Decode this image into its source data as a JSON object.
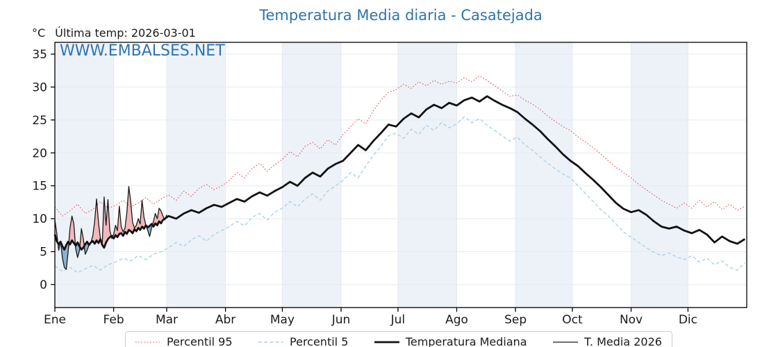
{
  "title": "Temperatura Media diaria - Casatejada",
  "header": {
    "unit": "°C",
    "last_temp": "Última temp: 2026-03-01"
  },
  "watermark": "WWW.EMBALSES.NET",
  "colors": {
    "title": "#2e74ad",
    "watermark": "#2f74b3",
    "band": "#edf2f8",
    "grid": "#e7eaef",
    "frame": "#000000",
    "p95": "#e25252",
    "p5": "#a9d2e8",
    "median": "#111111",
    "t2026": "#1a1a1a",
    "fill_above": "#f4b8ba",
    "fill_below": "#8cb2d0"
  },
  "chart_data": {
    "type": "line",
    "title": "Temperatura Media diaria - Casatejada",
    "xlabel": "",
    "ylabel": "°C",
    "ylim": [
      -3.5,
      36.8
    ],
    "yticks": [
      0,
      5,
      10,
      15,
      20,
      25,
      30,
      35
    ],
    "x_tick_labels": [
      "Ene",
      "Feb",
      "Mar",
      "Abr",
      "May",
      "Jun",
      "Jul",
      "Ago",
      "Sep",
      "Oct",
      "Nov",
      "Dic"
    ],
    "x_tick_days": [
      0,
      31,
      59,
      90,
      120,
      151,
      181,
      212,
      243,
      273,
      304,
      334
    ],
    "days_in_year": 365,
    "shaded_month_indices": [
      0,
      2,
      4,
      6,
      8,
      10
    ],
    "grid": true,
    "legend_position": "bottom",
    "series": [
      {
        "name": "Percentil 95",
        "key": "percentil-95",
        "style": "dotted",
        "x0": 0,
        "dx": 4,
        "values": [
          11.8,
          10.4,
          11.2,
          12.2,
          10.8,
          11.4,
          12.6,
          11.6,
          12.0,
          12.8,
          11.8,
          12.4,
          13.2,
          12.2,
          13.0,
          13.6,
          12.8,
          14.2,
          13.4,
          14.6,
          15.2,
          14.4,
          15.0,
          15.8,
          17.0,
          16.2,
          17.6,
          18.4,
          17.2,
          18.2,
          19.0,
          20.2,
          19.4,
          21.0,
          21.6,
          20.6,
          22.0,
          21.2,
          22.8,
          24.0,
          25.2,
          24.4,
          26.4,
          28.0,
          29.2,
          29.6,
          30.4,
          29.8,
          30.8,
          30.2,
          31.0,
          30.4,
          30.9,
          30.6,
          31.4,
          30.8,
          31.7,
          31.0,
          30.2,
          29.4,
          28.6,
          28.8,
          28.0,
          27.4,
          26.6,
          25.6,
          24.8,
          24.0,
          23.4,
          22.4,
          21.6,
          20.8,
          19.8,
          18.8,
          17.8,
          17.0,
          16.2,
          15.2,
          14.4,
          13.6,
          12.8,
          12.2,
          11.6,
          12.4,
          11.6,
          12.8,
          11.8,
          12.6,
          11.4,
          12.2,
          11.3,
          11.9
        ]
      },
      {
        "name": "Percentil 5",
        "key": "percentil-5",
        "style": "dashed",
        "x0": 0,
        "dx": 4,
        "values": [
          2.8,
          2.0,
          2.6,
          1.8,
          2.4,
          2.9,
          2.2,
          3.0,
          3.4,
          4.0,
          3.6,
          4.4,
          3.8,
          4.6,
          5.0,
          5.6,
          6.4,
          5.8,
          6.8,
          7.4,
          6.6,
          7.6,
          8.2,
          8.8,
          9.6,
          8.9,
          10.2,
          10.8,
          9.8,
          11.0,
          11.6,
          12.6,
          11.8,
          13.0,
          13.8,
          12.8,
          14.2,
          15.0,
          15.8,
          17.0,
          16.2,
          18.0,
          19.6,
          21.0,
          22.6,
          23.0,
          22.2,
          23.6,
          22.8,
          24.2,
          23.4,
          24.6,
          23.8,
          24.4,
          25.5,
          24.6,
          25.2,
          24.2,
          23.4,
          22.6,
          21.8,
          22.4,
          21.2,
          20.4,
          19.4,
          18.4,
          17.6,
          16.8,
          16.2,
          15.0,
          13.8,
          12.6,
          11.4,
          10.4,
          9.2,
          8.0,
          7.2,
          6.4,
          5.6,
          4.9,
          4.4,
          4.8,
          4.2,
          3.8,
          4.4,
          3.4,
          4.0,
          3.0,
          3.6,
          2.6,
          2.2,
          3.3
        ]
      },
      {
        "name": "Temperatura Mediana",
        "key": "temperatura-mediana",
        "style": "solid-thick",
        "x": [
          0,
          1,
          2,
          3,
          4,
          5,
          6,
          7,
          8,
          9,
          10,
          11,
          12,
          13,
          14,
          15,
          16,
          17,
          18,
          19,
          20,
          21,
          22,
          23,
          24,
          25,
          26,
          27,
          28,
          29,
          30,
          31,
          32,
          33,
          34,
          35,
          36,
          37,
          38,
          39,
          40,
          41,
          42,
          43,
          44,
          45,
          46,
          47,
          48,
          49,
          50,
          51,
          52,
          53,
          54,
          55,
          56,
          57,
          58,
          59,
          60,
          64,
          68,
          72,
          76,
          80,
          84,
          88,
          92,
          96,
          100,
          104,
          108,
          112,
          116,
          120,
          124,
          128,
          132,
          136,
          140,
          144,
          148,
          152,
          156,
          160,
          164,
          168,
          172,
          176,
          180,
          184,
          188,
          192,
          196,
          200,
          204,
          208,
          212,
          216,
          220,
          224,
          228,
          232,
          236,
          240,
          244,
          248,
          252,
          256,
          260,
          264,
          268,
          272,
          276,
          280,
          284,
          288,
          292,
          296,
          300,
          304,
          308,
          312,
          316,
          320,
          324,
          328,
          332,
          336,
          340,
          344,
          348,
          352,
          356,
          360,
          364
        ],
        "values": [
          7.6,
          6.6,
          6.1,
          6.5,
          5.8,
          5.3,
          6.0,
          6.5,
          6.1,
          6.7,
          6.3,
          5.9,
          6.4,
          5.8,
          5.3,
          5.6,
          6.1,
          6.5,
          6.0,
          6.4,
          6.6,
          6.2,
          6.7,
          6.3,
          6.9,
          6.0,
          5.6,
          6.4,
          6.9,
          7.2,
          7.4,
          7.0,
          7.5,
          7.2,
          7.7,
          7.8,
          7.4,
          8.0,
          7.7,
          8.3,
          8.1,
          7.8,
          8.4,
          8.1,
          8.6,
          8.3,
          8.8,
          8.5,
          9.0,
          8.7,
          8.9,
          9.2,
          8.8,
          9.3,
          9.0,
          9.6,
          9.3,
          9.8,
          10.0,
          10.2,
          10.4,
          10.0,
          10.8,
          11.3,
          10.9,
          11.6,
          12.1,
          11.8,
          12.4,
          13.0,
          12.6,
          13.4,
          14.0,
          13.5,
          14.2,
          14.8,
          15.6,
          15.0,
          16.2,
          17.0,
          16.4,
          17.6,
          18.3,
          18.8,
          20.0,
          21.2,
          20.4,
          21.8,
          23.0,
          24.3,
          24.0,
          25.2,
          26.0,
          25.4,
          26.6,
          27.3,
          26.8,
          27.6,
          27.2,
          28.0,
          28.4,
          27.8,
          28.6,
          27.9,
          27.3,
          26.8,
          26.2,
          25.2,
          24.3,
          23.3,
          22.1,
          21.0,
          19.8,
          18.8,
          18.0,
          16.9,
          15.9,
          14.8,
          13.6,
          12.4,
          11.5,
          11.0,
          11.3,
          10.6,
          9.6,
          8.8,
          8.5,
          8.8,
          8.2,
          7.8,
          8.3,
          7.6,
          6.4,
          7.3,
          6.6,
          6.2,
          6.9
        ]
      },
      {
        "name": "T. Media 2026",
        "key": "t-media-2026",
        "style": "solid-thin",
        "x0": 0,
        "dx": 1,
        "values": [
          9.8,
          7.8,
          5.2,
          6.6,
          4.0,
          2.6,
          2.3,
          5.0,
          8.6,
          10.4,
          9.2,
          5.4,
          4.1,
          5.2,
          8.5,
          7.0,
          4.6,
          5.2,
          6.0,
          6.4,
          7.4,
          9.6,
          13.0,
          9.4,
          7.0,
          6.2,
          13.3,
          9.0,
          12.9,
          8.2,
          7.0,
          7.6,
          9.0,
          8.2,
          11.9,
          8.8,
          8.0,
          8.6,
          11.0,
          14.9,
          12.6,
          9.4,
          8.6,
          9.0,
          10.0,
          9.2,
          12.8,
          10.2,
          9.0,
          8.2,
          7.3,
          8.6,
          9.6,
          10.8,
          10.0,
          11.6,
          11.2,
          10.4,
          9.8,
          10.6
        ]
      }
    ],
    "fill_between": {
      "upper_series": "t-media-2026",
      "lower_series": "temperatura-mediana",
      "note": "pink where T. Media 2026 above mediana, blue where below"
    }
  }
}
